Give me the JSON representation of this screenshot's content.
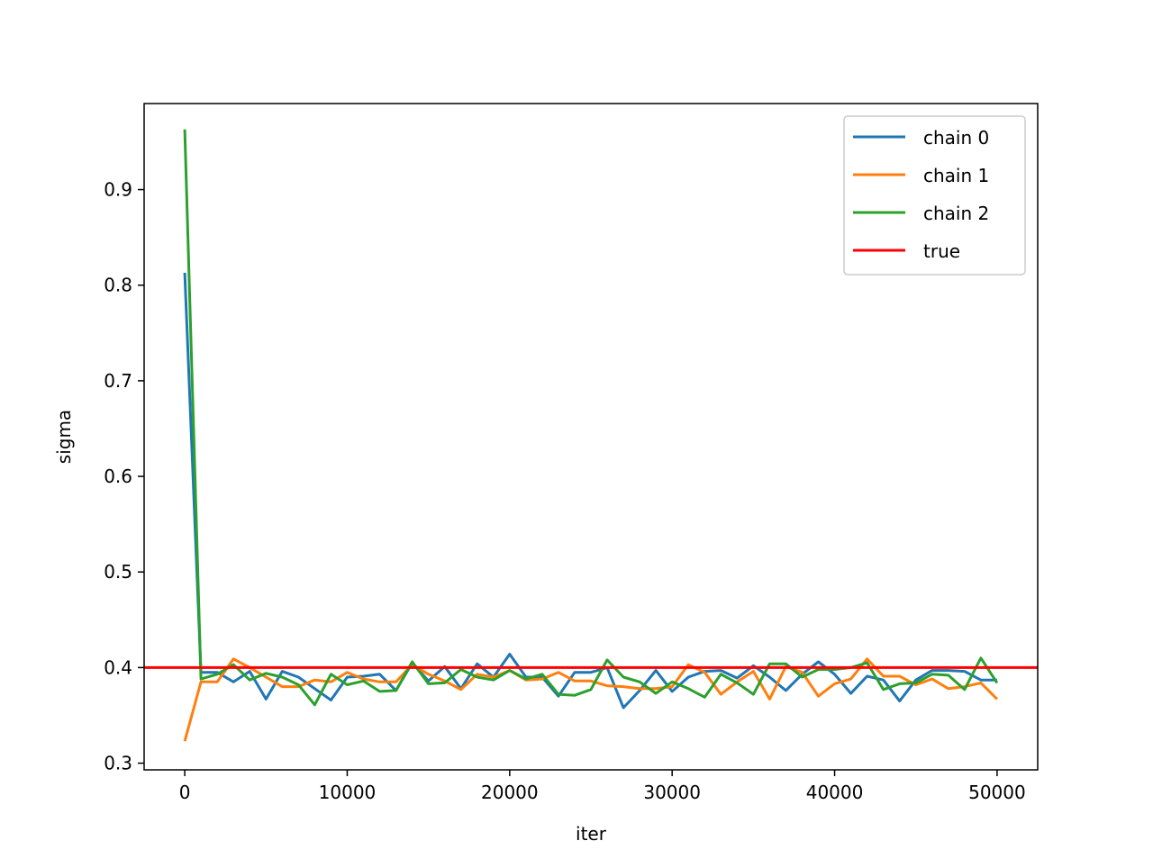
{
  "chart_data": {
    "type": "line",
    "title": "",
    "xlabel": "iter",
    "ylabel": "sigma",
    "xlim": [
      -2500,
      52500
    ],
    "ylim": [
      0.293,
      0.99
    ],
    "xticks": [
      0,
      10000,
      20000,
      30000,
      40000,
      50000
    ],
    "xtick_labels": [
      "0",
      "10000",
      "20000",
      "30000",
      "40000",
      "50000"
    ],
    "yticks": [
      0.3,
      0.4,
      0.5,
      0.6,
      0.7,
      0.8,
      0.9
    ],
    "ytick_labels": [
      "0.3",
      "0.4",
      "0.5",
      "0.6",
      "0.7",
      "0.8",
      "0.9"
    ],
    "grid": false,
    "legend_position": "top-right",
    "x": [
      0,
      1000,
      2000,
      3000,
      4000,
      5000,
      6000,
      7000,
      8000,
      9000,
      10000,
      11000,
      12000,
      13000,
      14000,
      15000,
      16000,
      17000,
      18000,
      19000,
      20000,
      21000,
      22000,
      23000,
      24000,
      25000,
      26000,
      27000,
      28000,
      29000,
      30000,
      31000,
      32000,
      33000,
      34000,
      35000,
      36000,
      37000,
      38000,
      39000,
      40000,
      41000,
      42000,
      43000,
      44000,
      45000,
      46000,
      47000,
      48000,
      49000,
      50000
    ],
    "series": [
      {
        "name": "chain 0",
        "color": "#1f77b4",
        "values": [
          0.813,
          0.395,
          0.395,
          0.385,
          0.396,
          0.367,
          0.396,
          0.39,
          0.378,
          0.366,
          0.39,
          0.391,
          0.393,
          0.376,
          0.405,
          0.386,
          0.401,
          0.378,
          0.404,
          0.39,
          0.414,
          0.39,
          0.39,
          0.37,
          0.395,
          0.395,
          0.4,
          0.358,
          0.376,
          0.397,
          0.375,
          0.39,
          0.396,
          0.397,
          0.389,
          0.402,
          0.39,
          0.376,
          0.393,
          0.406,
          0.393,
          0.373,
          0.391,
          0.387,
          0.365,
          0.387,
          0.397,
          0.397,
          0.396,
          0.387,
          0.387
        ]
      },
      {
        "name": "chain 1",
        "color": "#ff7f0e",
        "values": [
          0.323,
          0.385,
          0.385,
          0.409,
          0.4,
          0.39,
          0.38,
          0.38,
          0.387,
          0.385,
          0.395,
          0.388,
          0.385,
          0.385,
          0.403,
          0.393,
          0.386,
          0.377,
          0.393,
          0.39,
          0.397,
          0.387,
          0.388,
          0.395,
          0.386,
          0.386,
          0.381,
          0.38,
          0.378,
          0.378,
          0.38,
          0.403,
          0.395,
          0.372,
          0.385,
          0.396,
          0.367,
          0.401,
          0.395,
          0.37,
          0.383,
          0.388,
          0.409,
          0.391,
          0.391,
          0.382,
          0.388,
          0.378,
          0.38,
          0.384,
          0.367
        ]
      },
      {
        "name": "chain 2",
        "color": "#2ca02c",
        "values": [
          0.963,
          0.388,
          0.393,
          0.403,
          0.387,
          0.394,
          0.39,
          0.382,
          0.361,
          0.393,
          0.382,
          0.386,
          0.375,
          0.376,
          0.406,
          0.383,
          0.384,
          0.398,
          0.39,
          0.387,
          0.397,
          0.388,
          0.393,
          0.372,
          0.371,
          0.377,
          0.408,
          0.39,
          0.385,
          0.373,
          0.385,
          0.378,
          0.369,
          0.393,
          0.384,
          0.372,
          0.404,
          0.404,
          0.39,
          0.398,
          0.398,
          0.4,
          0.405,
          0.377,
          0.383,
          0.384,
          0.393,
          0.392,
          0.377,
          0.41,
          0.384
        ]
      },
      {
        "name": "true",
        "color": "#ff0000",
        "constant": 0.4
      }
    ]
  }
}
